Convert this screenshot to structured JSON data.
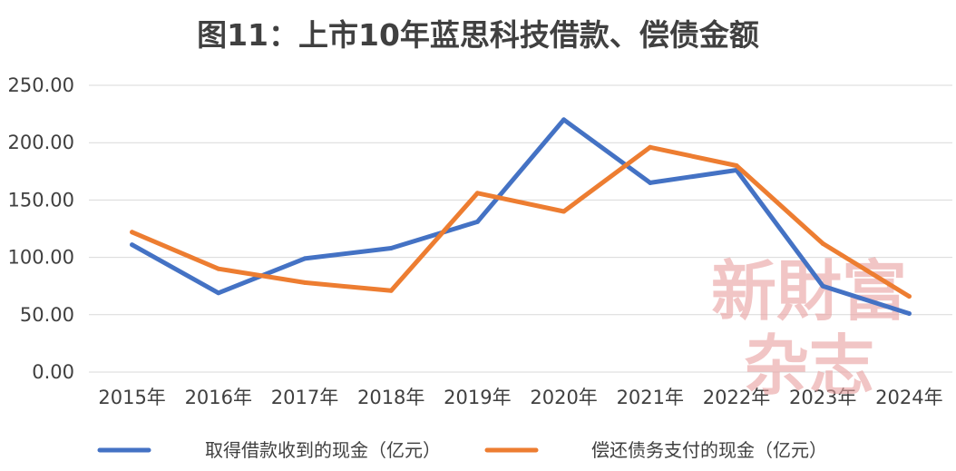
{
  "chart_data": {
    "type": "line",
    "title": "图11：上市10年蓝思科技借款、偿债金额",
    "categories": [
      "2015年",
      "2016年",
      "2017年",
      "2018年",
      "2019年",
      "2020年",
      "2021年",
      "2022年",
      "2023年",
      "2024年"
    ],
    "y_ticks": [
      "0.00",
      "50.00",
      "100.00",
      "150.00",
      "200.00",
      "250.00"
    ],
    "ylim": [
      0,
      250
    ],
    "grid": true,
    "legend_position": "bottom",
    "series": [
      {
        "name": "取得借款收到的现金（亿元）",
        "color": "#4472c4",
        "values": [
          111,
          69,
          99,
          108,
          131,
          220,
          165,
          176,
          75,
          51
        ]
      },
      {
        "name": "偿还债务支付的现金（亿元）",
        "color": "#ed7d31",
        "values": [
          122,
          90,
          78,
          71,
          156,
          140,
          196,
          180,
          112,
          66
        ]
      }
    ]
  },
  "watermark": {
    "line1": "新財富",
    "line2": "杂志"
  }
}
